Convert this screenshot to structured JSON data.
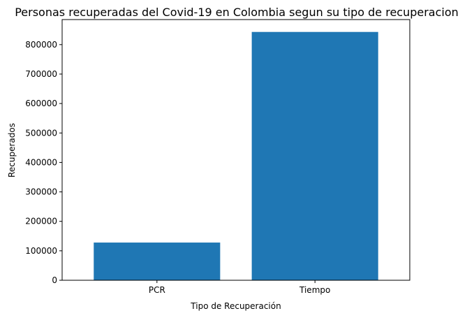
{
  "chart_data": {
    "type": "bar",
    "title": "Personas recuperadas del Covid-19 en Colombia segun su tipo de recuperacion",
    "xlabel": "Tipo de Recuperación",
    "ylabel": "Recuperados",
    "categories": [
      "PCR",
      "Tiempo"
    ],
    "values": [
      128000,
      843000
    ],
    "ylim": [
      0,
      885000
    ],
    "yticks": [
      0,
      100000,
      200000,
      300000,
      400000,
      500000,
      600000,
      700000,
      800000
    ],
    "ytick_labels": [
      "0",
      "100000",
      "200000",
      "300000",
      "400000",
      "500000",
      "600000",
      "700000",
      "800000"
    ],
    "grid": false,
    "bar_color": "#1f77b4"
  }
}
